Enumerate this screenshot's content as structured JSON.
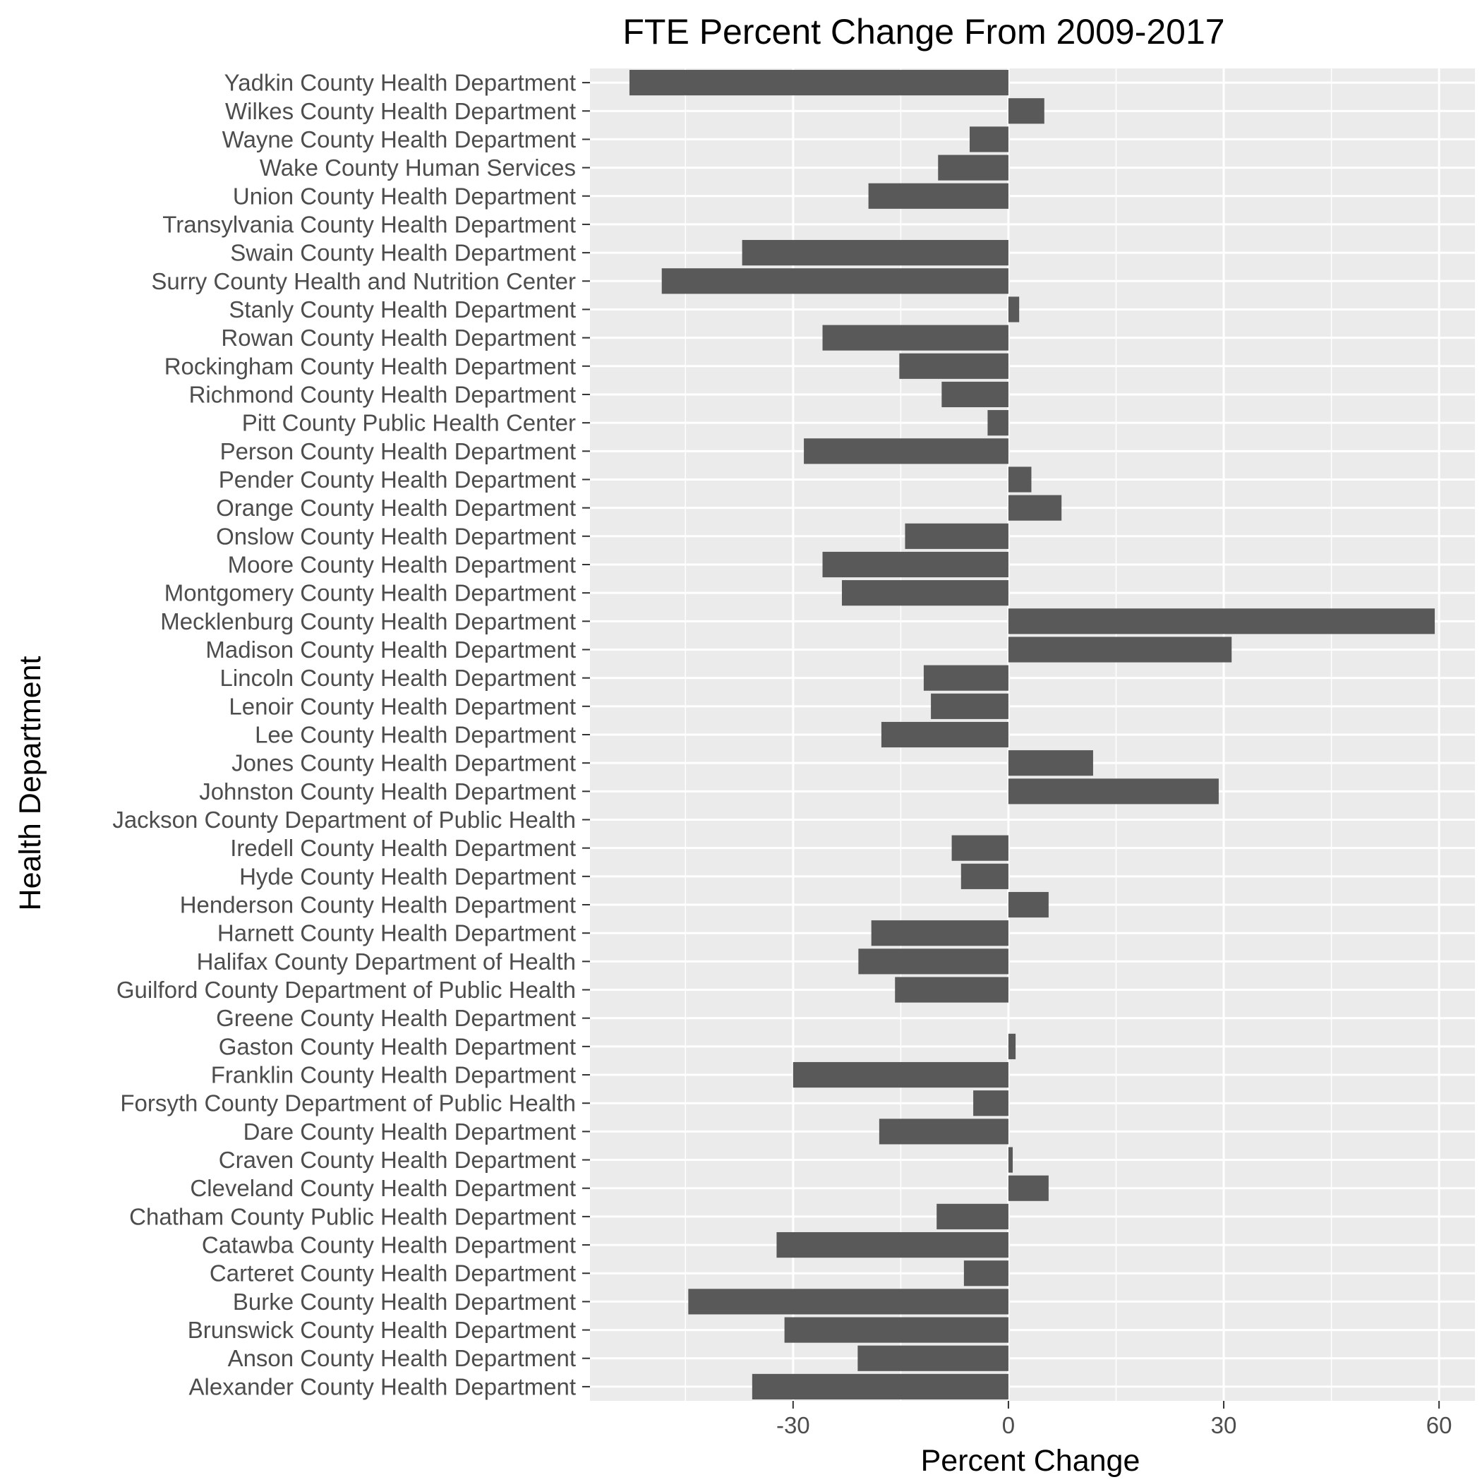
{
  "chart_data": {
    "type": "bar",
    "orientation": "horizontal",
    "title": "FTE Percent Change From 2009-2017",
    "xlabel": "Percent Change",
    "ylabel": "Health Department",
    "xlim": [
      -58.3,
      65
    ],
    "xticks": [
      -30,
      0,
      30,
      60
    ],
    "grid": true,
    "categories": [
      "Yadkin County Health Department",
      "Wilkes County Health Department",
      "Wayne County Health Department",
      "Wake County Human Services",
      "Union County Health Department",
      "Transylvania County Health Department",
      "Swain County Health Department",
      "Surry County Health and Nutrition Center",
      "Stanly County Health Department",
      "Rowan County Health Department",
      "Rockingham County Health Department",
      "Richmond County Health Department",
      "Pitt County Public Health Center",
      "Person County Health Department",
      "Pender County Health Department",
      "Orange County Health Department",
      "Onslow County Health Department",
      "Moore County Health Department",
      "Montgomery County Health Department",
      "Mecklenburg County Health Department",
      "Madison County Health Department",
      "Lincoln County Health Department",
      "Lenoir County Health Department",
      "Lee County Health Department",
      "Jones County Health Department",
      "Johnston County Health Department",
      "Jackson County Department of Public Health",
      "Iredell County Health Department",
      "Hyde County Health Department",
      "Henderson County Health Department",
      "Harnett County Health Department",
      "Halifax County Department of Health",
      "Guilford County Department of Public Health",
      "Greene County Health Department",
      "Gaston County Health Department",
      "Franklin County Health Department",
      "Forsyth County Department of Public Health",
      "Dare County Health Department",
      "Craven County Health Department",
      "Cleveland County Health Department",
      "Chatham County Public Health Department",
      "Catawba County Health Department",
      "Carteret County Health Department",
      "Burke County Health Department",
      "Brunswick County Health Department",
      "Anson County Health Department",
      "Alexander County Health Department"
    ],
    "values": [
      -52.8,
      5.0,
      -5.4,
      -9.8,
      -19.5,
      0.0,
      -37.1,
      -48.3,
      1.5,
      -25.9,
      -15.2,
      -9.3,
      -2.9,
      -28.5,
      3.2,
      7.4,
      -14.4,
      -25.9,
      -23.2,
      59.4,
      31.1,
      -11.8,
      -10.8,
      -17.7,
      11.8,
      29.3,
      0.0,
      -7.9,
      -6.6,
      5.6,
      -19.1,
      -20.9,
      -15.8,
      0.0,
      1.0,
      -30.0,
      -4.9,
      -18.0,
      0.6,
      5.6,
      -10.0,
      -32.3,
      -6.2,
      -44.6,
      -31.2,
      -21.0,
      -35.7
    ],
    "bar_color": "#595959",
    "panel_background": "#ebebeb",
    "gridline_color": "#ffffff"
  }
}
